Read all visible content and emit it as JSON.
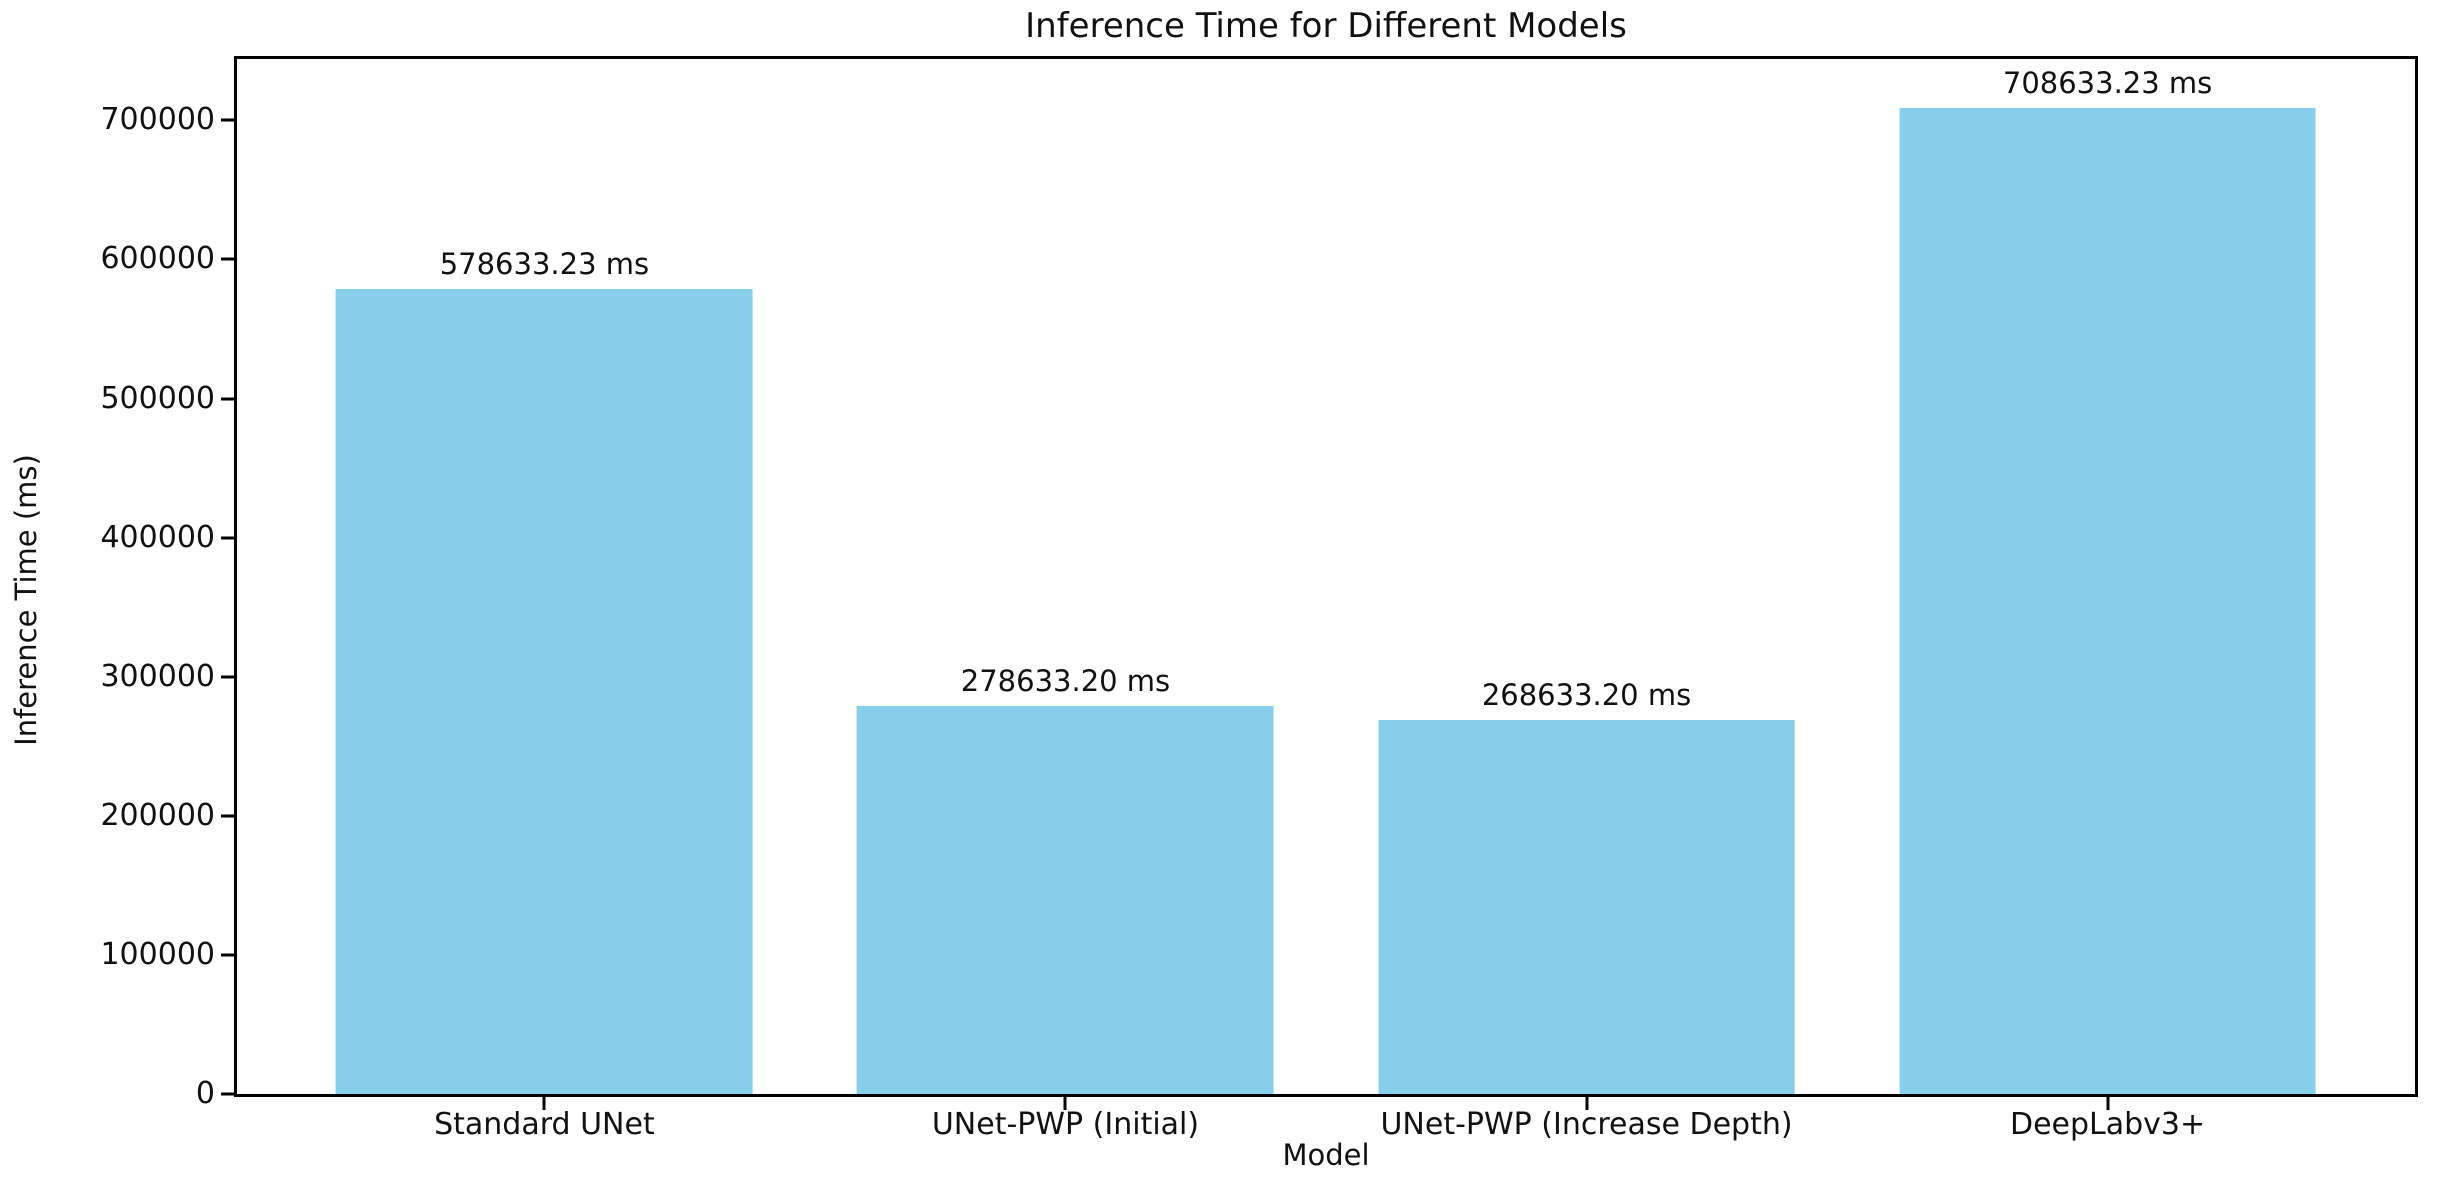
{
  "chart_data": {
    "type": "bar",
    "title": "Inference Time for Different Models",
    "xlabel": "Model",
    "ylabel": "Inference Time (ms)",
    "categories": [
      "Standard UNet",
      "UNet-PWP (Initial)",
      "UNet-PWP (Increase Depth)",
      "DeepLabv3+"
    ],
    "values": [
      578633.23,
      278633.2,
      268633.2,
      708633.23
    ],
    "value_labels": [
      "578633.23 ms",
      "278633.20 ms",
      "268633.20 ms",
      "708633.23 ms"
    ],
    "yticks": [
      0,
      100000,
      200000,
      300000,
      400000,
      500000,
      600000,
      700000
    ],
    "ylim": [
      0,
      744065
    ],
    "bar_width_fraction": 0.8,
    "bar_color": "#87CEEB",
    "axis_color": "#000000",
    "text_color": "#111111",
    "grid": false,
    "legend": "none"
  }
}
